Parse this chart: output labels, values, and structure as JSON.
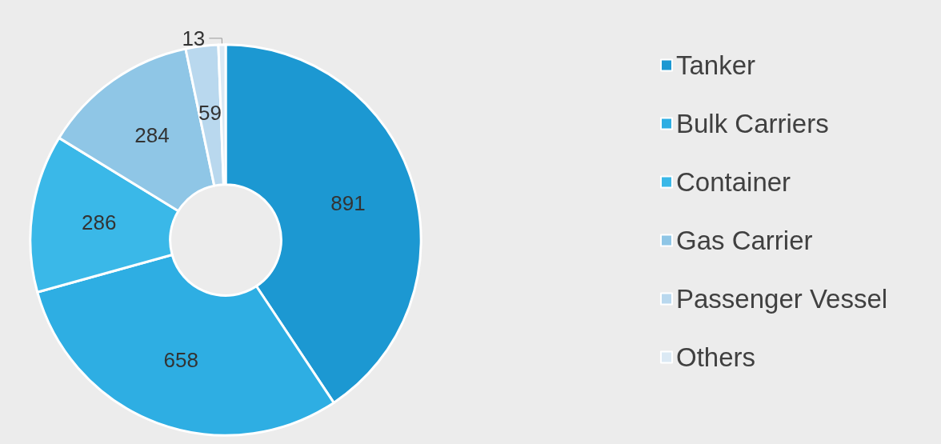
{
  "chart_data": {
    "type": "donut",
    "categories": [
      "Tanker",
      "Bulk Carriers",
      "Container",
      "Gas Carrier",
      "Passenger Vessel",
      "Others"
    ],
    "values": [
      891,
      658,
      286,
      284,
      59,
      13
    ],
    "colors": [
      "#1c98d2",
      "#2eaee3",
      "#3ab8e8",
      "#8fc6e6",
      "#b9d8ee",
      "#dbe9f4"
    ],
    "data_labels": true,
    "legend": "right"
  }
}
